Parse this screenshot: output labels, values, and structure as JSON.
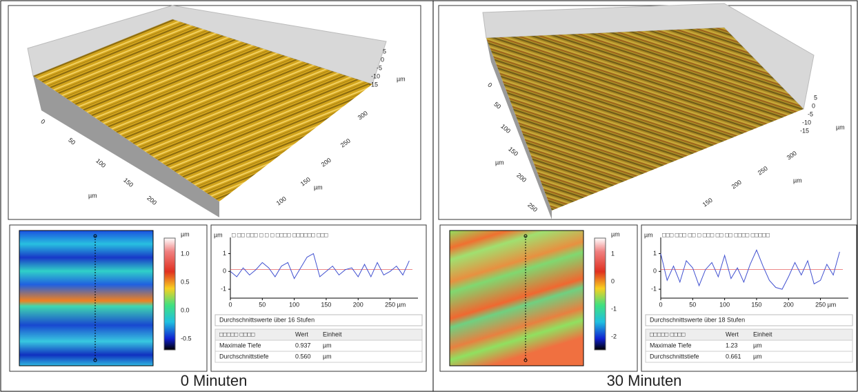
{
  "panels": [
    {
      "surface": {
        "front_ticks": [
          "0",
          "50",
          "100",
          "150",
          "200"
        ],
        "front_unit": "µm",
        "side_ticks": [
          "300",
          "250",
          "200",
          "150",
          "100"
        ],
        "side_unit": "µm",
        "z_ticks": [
          "5",
          "0",
          "-5",
          "-10",
          "-15"
        ],
        "z_unit": "µm"
      },
      "heatmap": {
        "unit": "µm",
        "colorbar_ticks": [
          "1.0",
          "0.5",
          "0.0",
          "-0.5"
        ]
      },
      "profile": {
        "unit": "µm",
        "top_marks": "□  □□      □□□   □      □    □   □□□□  □□□□□□ □□□",
        "xlim": [
          0,
          285
        ],
        "ylim": [
          -1.5,
          1.6
        ],
        "xticks": [
          0,
          50,
          100,
          150,
          200,
          250
        ],
        "x_unit": "µm",
        "yticks": [
          1,
          0,
          -1
        ],
        "x": [
          0,
          10,
          20,
          30,
          40,
          50,
          60,
          70,
          80,
          90,
          100,
          110,
          120,
          130,
          140,
          150,
          160,
          170,
          180,
          190,
          200,
          210,
          220,
          230,
          240,
          250,
          260,
          270,
          280
        ],
        "values": [
          0,
          -0.3,
          0.2,
          -0.2,
          0.1,
          0.5,
          0.2,
          -0.3,
          0.3,
          0.5,
          -0.4,
          0.2,
          0.8,
          1.0,
          -0.3,
          0,
          0.3,
          -0.2,
          0.1,
          0.2,
          -0.3,
          0.4,
          -0.3,
          0.5,
          -0.2,
          0,
          0.3,
          -0.2,
          0.6
        ]
      },
      "summary": "Durchschnittswerte über 16 Stufen",
      "table": {
        "header": [
          "□□□□□ □□□□",
          "Wert",
          "Einheit"
        ],
        "rows": [
          [
            "Maximale Tiefe",
            "0.937",
            "µm"
          ],
          [
            "Durchschnittstiefe",
            "0.560",
            "µm"
          ]
        ]
      },
      "caption": "0 Minuten"
    },
    {
      "surface": {
        "front_ticks": [
          "0",
          "50",
          "100",
          "150",
          "200",
          "250"
        ],
        "front_unit": "µm",
        "side_ticks": [
          "300",
          "250",
          "200",
          "150"
        ],
        "side_unit": "µm",
        "z_ticks": [
          "5",
          "0",
          "-5",
          "-10",
          "-15"
        ],
        "z_unit": "µm"
      },
      "heatmap": {
        "unit": "µm",
        "colorbar_ticks": [
          "1",
          "0",
          "-1",
          "-2"
        ]
      },
      "profile": {
        "unit": "µm",
        "top_marks": "□□□ □□□ □□ □ □□□   □□         □□  □□□□   □□□□□",
        "xlim": [
          0,
          285
        ],
        "ylim": [
          -1.5,
          1.6
        ],
        "xticks": [
          0,
          50,
          100,
          150,
          200,
          250
        ],
        "x_unit": "µm",
        "yticks": [
          1,
          0,
          -1
        ],
        "x": [
          0,
          10,
          20,
          30,
          40,
          50,
          60,
          70,
          80,
          90,
          100,
          110,
          120,
          130,
          140,
          150,
          160,
          170,
          180,
          190,
          200,
          210,
          220,
          230,
          240,
          250,
          260,
          270,
          280
        ],
        "values": [
          1.0,
          -0.5,
          0.3,
          -0.6,
          0.6,
          0.2,
          -0.8,
          0.1,
          0.5,
          -0.3,
          0.9,
          -0.4,
          0.2,
          -0.6,
          0.4,
          1.2,
          0.3,
          -0.5,
          -0.9,
          -1.0,
          -0.3,
          0.5,
          -0.2,
          0.6,
          -0.7,
          -0.5,
          0.4,
          -0.2,
          1.1
        ]
      },
      "summary": "Durchschnittswerte über 18 Stufen",
      "table": {
        "header": [
          "□□□□□ □□□□",
          "Wert",
          "Einheit"
        ],
        "rows": [
          [
            "Maximale Tiefe",
            "1.23",
            "µm"
          ],
          [
            "Durchschnittstiefe",
            "0.661",
            "µm"
          ]
        ]
      },
      "caption": "30 Minuten"
    }
  ]
}
